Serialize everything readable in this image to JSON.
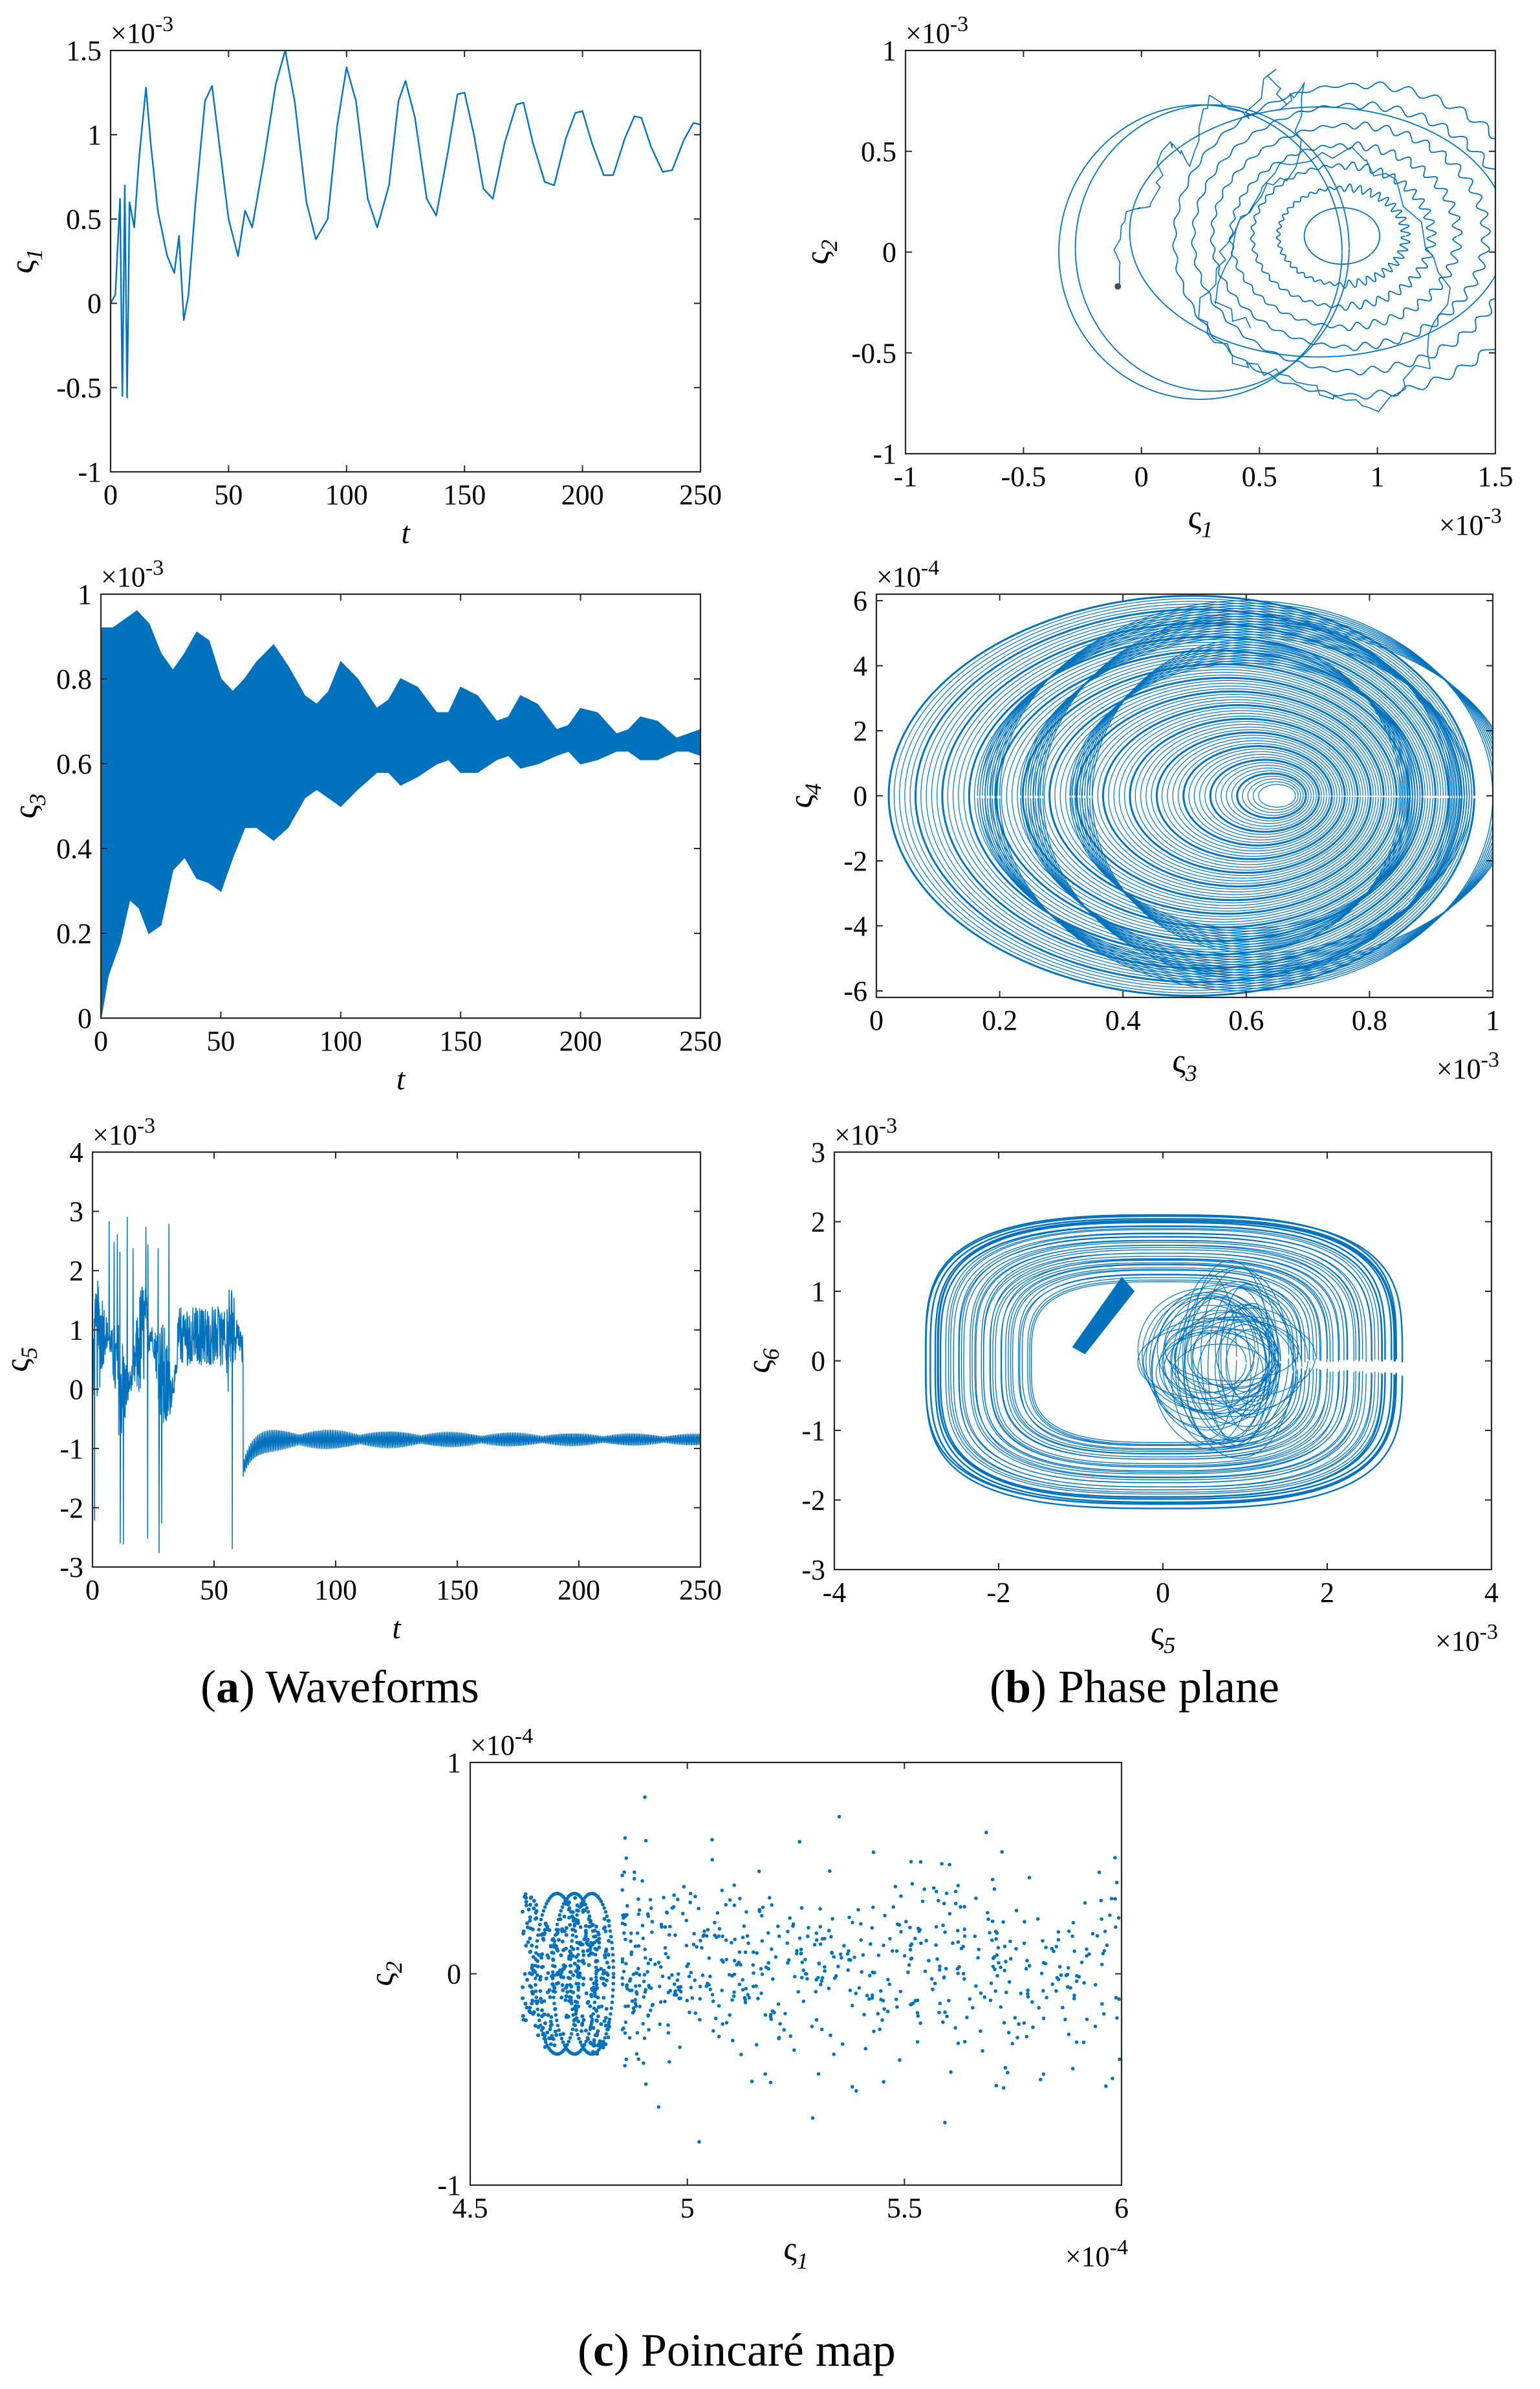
{
  "captions": {
    "a": {
      "letter": "a",
      "text": "Waveforms"
    },
    "b": {
      "letter": "b",
      "text": "Phase plane"
    },
    "c": {
      "letter": "c",
      "text": "Poincaré map"
    }
  },
  "colors": {
    "series": "#0072BD",
    "axis": "#262626",
    "start_marker": "#4d4d4d"
  },
  "chart_data": [
    {
      "id": "a1",
      "type": "line",
      "panel": "(a) Waveforms",
      "xlabel": "t",
      "ylabel_base": "ς",
      "ylabel_sub": "1",
      "xlim": [
        0,
        250
      ],
      "ylim": [
        -1,
        1.5
      ],
      "exponent": "×10-3",
      "xticks": [
        0,
        50,
        100,
        150,
        200,
        250
      ],
      "yticks": [
        -1,
        -0.5,
        0,
        0.5,
        1,
        1.5
      ],
      "points": [
        [
          0,
          0
        ],
        [
          2,
          0.05
        ],
        [
          4,
          0.62
        ],
        [
          5,
          -0.55
        ],
        [
          6,
          0.7
        ],
        [
          7,
          -0.56
        ],
        [
          8,
          0.6
        ],
        [
          10,
          0.45
        ],
        [
          12,
          0.85
        ],
        [
          15,
          1.28
        ],
        [
          17,
          0.95
        ],
        [
          20,
          0.55
        ],
        [
          24,
          0.28
        ],
        [
          27,
          0.18
        ],
        [
          29,
          0.4
        ],
        [
          31,
          -0.1
        ],
        [
          33,
          0.05
        ],
        [
          36,
          0.6
        ],
        [
          40,
          1.2
        ],
        [
          43,
          1.29
        ],
        [
          46,
          0.95
        ],
        [
          50,
          0.5
        ],
        [
          54,
          0.28
        ],
        [
          57,
          0.55
        ],
        [
          60,
          0.45
        ],
        [
          65,
          0.85
        ],
        [
          70,
          1.3
        ],
        [
          74,
          1.5
        ],
        [
          78,
          1.2
        ],
        [
          83,
          0.6
        ],
        [
          87,
          0.38
        ],
        [
          92,
          0.5
        ],
        [
          96,
          1.05
        ],
        [
          100,
          1.4
        ],
        [
          104,
          1.2
        ],
        [
          109,
          0.62
        ],
        [
          113,
          0.45
        ],
        [
          118,
          0.7
        ],
        [
          122,
          1.2
        ],
        [
          125,
          1.32
        ],
        [
          129,
          1.1
        ],
        [
          134,
          0.62
        ],
        [
          138,
          0.52
        ],
        [
          143,
          0.9
        ],
        [
          147,
          1.24
        ],
        [
          150,
          1.25
        ],
        [
          154,
          1.0
        ],
        [
          158,
          0.68
        ],
        [
          162,
          0.62
        ],
        [
          167,
          0.95
        ],
        [
          172,
          1.18
        ],
        [
          175,
          1.19
        ],
        [
          179,
          0.95
        ],
        [
          184,
          0.72
        ],
        [
          188,
          0.7
        ],
        [
          193,
          0.98
        ],
        [
          197,
          1.13
        ],
        [
          200,
          1.14
        ],
        [
          204,
          0.95
        ],
        [
          209,
          0.76
        ],
        [
          213,
          0.76
        ],
        [
          218,
          0.98
        ],
        [
          222,
          1.11
        ],
        [
          225,
          1.1
        ],
        [
          229,
          0.93
        ],
        [
          234,
          0.78
        ],
        [
          238,
          0.79
        ],
        [
          243,
          0.97
        ],
        [
          247,
          1.07
        ],
        [
          250,
          1.06
        ]
      ]
    },
    {
      "id": "b1",
      "type": "line",
      "panel": "(b) Phase plane",
      "xlabel_base": "ς",
      "xlabel_sub": "1",
      "ylabel_base": "ς",
      "ylabel_sub": "2",
      "xlim": [
        -1,
        1.5
      ],
      "ylim": [
        -1,
        1
      ],
      "x_exponent": "×10-3",
      "y_exponent": "×10-3",
      "xticks": [
        -1,
        -0.5,
        0,
        0.5,
        1,
        1.5
      ],
      "yticks": [
        -1,
        -0.5,
        0,
        0.5,
        1
      ],
      "start_point": [
        -0.1,
        -0.17
      ],
      "rings": [
        [
          0.85,
          0.08,
          0.16,
          0.14
        ],
        [
          0.85,
          0.08,
          0.27,
          0.24
        ],
        [
          0.85,
          0.08,
          0.38,
          0.35
        ],
        [
          0.86,
          0.08,
          0.48,
          0.45
        ],
        [
          0.88,
          0.08,
          0.58,
          0.55
        ],
        [
          0.9,
          0.07,
          0.68,
          0.66
        ],
        [
          0.92,
          0.06,
          0.78,
          0.77
        ],
        [
          0.75,
          0.1,
          0.8,
          0.62
        ],
        [
          0.3,
          0.02,
          0.58,
          0.71
        ],
        [
          0.25,
          0.0,
          0.6,
          0.73
        ]
      ]
    },
    {
      "id": "a2",
      "type": "area",
      "panel": "(a) Waveforms",
      "xlabel": "t",
      "ylabel_base": "ς",
      "ylabel_sub": "3",
      "xlim": [
        0,
        250
      ],
      "ylim": [
        0,
        1
      ],
      "exponent": "×10-3",
      "xticks": [
        0,
        50,
        100,
        150,
        200,
        250
      ],
      "yticks": [
        0,
        0.2,
        0.4,
        0.6,
        0.8,
        1
      ],
      "upper": [
        [
          0,
          0.92
        ],
        [
          5,
          0.92
        ],
        [
          10,
          0.94
        ],
        [
          15,
          0.96
        ],
        [
          20,
          0.93
        ],
        [
          25,
          0.86
        ],
        [
          30,
          0.82
        ],
        [
          35,
          0.86
        ],
        [
          40,
          0.91
        ],
        [
          45,
          0.89
        ],
        [
          50,
          0.8
        ],
        [
          55,
          0.77
        ],
        [
          60,
          0.8
        ],
        [
          65,
          0.84
        ],
        [
          72,
          0.88
        ],
        [
          78,
          0.83
        ],
        [
          85,
          0.76
        ],
        [
          90,
          0.74
        ],
        [
          95,
          0.77
        ],
        [
          100,
          0.84
        ],
        [
          107,
          0.8
        ],
        [
          115,
          0.73
        ],
        [
          120,
          0.75
        ],
        [
          125,
          0.8
        ],
        [
          132,
          0.78
        ],
        [
          140,
          0.72
        ],
        [
          145,
          0.72
        ],
        [
          150,
          0.78
        ],
        [
          157,
          0.76
        ],
        [
          165,
          0.7
        ],
        [
          170,
          0.71
        ],
        [
          175,
          0.76
        ],
        [
          182,
          0.74
        ],
        [
          190,
          0.68
        ],
        [
          195,
          0.69
        ],
        [
          200,
          0.73
        ],
        [
          207,
          0.72
        ],
        [
          215,
          0.67
        ],
        [
          220,
          0.68
        ],
        [
          225,
          0.71
        ],
        [
          232,
          0.7
        ],
        [
          240,
          0.66
        ],
        [
          245,
          0.67
        ],
        [
          250,
          0.68
        ]
      ],
      "lower": [
        [
          0,
          0.0
        ],
        [
          3,
          0.1
        ],
        [
          8,
          0.18
        ],
        [
          12,
          0.28
        ],
        [
          16,
          0.26
        ],
        [
          20,
          0.2
        ],
        [
          25,
          0.22
        ],
        [
          30,
          0.35
        ],
        [
          35,
          0.38
        ],
        [
          40,
          0.33
        ],
        [
          45,
          0.32
        ],
        [
          50,
          0.3
        ],
        [
          55,
          0.38
        ],
        [
          60,
          0.45
        ],
        [
          65,
          0.45
        ],
        [
          72,
          0.42
        ],
        [
          78,
          0.45
        ],
        [
          85,
          0.52
        ],
        [
          90,
          0.54
        ],
        [
          95,
          0.52
        ],
        [
          100,
          0.5
        ],
        [
          107,
          0.54
        ],
        [
          115,
          0.58
        ],
        [
          120,
          0.58
        ],
        [
          125,
          0.55
        ],
        [
          132,
          0.57
        ],
        [
          140,
          0.6
        ],
        [
          145,
          0.61
        ],
        [
          150,
          0.58
        ],
        [
          157,
          0.58
        ],
        [
          165,
          0.61
        ],
        [
          170,
          0.62
        ],
        [
          175,
          0.59
        ],
        [
          182,
          0.6
        ],
        [
          190,
          0.62
        ],
        [
          195,
          0.63
        ],
        [
          200,
          0.6
        ],
        [
          207,
          0.61
        ],
        [
          215,
          0.63
        ],
        [
          220,
          0.63
        ],
        [
          225,
          0.61
        ],
        [
          232,
          0.61
        ],
        [
          240,
          0.63
        ],
        [
          245,
          0.63
        ],
        [
          250,
          0.62
        ]
      ]
    },
    {
      "id": "b2",
      "type": "line",
      "panel": "(b) Phase plane",
      "xlabel_base": "ς",
      "xlabel_sub": "3",
      "ylabel_base": "ς",
      "ylabel_sub": "4",
      "xlim": [
        0,
        1
      ],
      "ylim": [
        -6.2,
        6.2
      ],
      "x_exponent": "×10-3",
      "y_exponent": "×10-4",
      "xticks": [
        0,
        0.2,
        0.4,
        0.6,
        0.8,
        1
      ],
      "yticks": [
        -6,
        -4,
        -2,
        0,
        2,
        4,
        6
      ],
      "hole": [
        0.645,
        0
      ]
    },
    {
      "id": "a3",
      "type": "line",
      "panel": "(a) Waveforms",
      "xlabel": "t",
      "ylabel_base": "ς",
      "ylabel_sub": "5",
      "xlim": [
        0,
        250
      ],
      "ylim": [
        -3,
        4
      ],
      "exponent": "×10-3",
      "xticks": [
        0,
        50,
        100,
        150,
        200,
        250
      ],
      "yticks": [
        -3,
        -2,
        -1,
        0,
        1,
        2,
        3,
        4
      ],
      "transient_end": 62,
      "settle_value": -0.85,
      "settle_amp": 0.2
    },
    {
      "id": "b3",
      "type": "line",
      "panel": "(b) Phase plane",
      "xlabel_base": "ς",
      "xlabel_sub": "5",
      "ylabel_base": "ς",
      "ylabel_sub": "6",
      "xlim": [
        -4,
        4
      ],
      "ylim": [
        -3,
        3
      ],
      "x_exponent": "×10-3",
      "y_exponent": "×10-3",
      "xticks": [
        -4,
        -2,
        0,
        2,
        4
      ],
      "yticks": [
        -3,
        -2,
        -1,
        0,
        1,
        2,
        3
      ]
    },
    {
      "id": "c1",
      "type": "scatter",
      "panel": "(c) Poincaré map",
      "xlabel_base": "ς",
      "xlabel_sub": "1",
      "ylabel_base": "ς",
      "ylabel_sub": "2",
      "xlim": [
        4.5,
        6
      ],
      "ylim": [
        -1,
        1
      ],
      "x_exponent": "×10-4",
      "y_exponent": "×10-4",
      "xticks": [
        4.5,
        5,
        5.5,
        6
      ],
      "yticks": [
        -1,
        0,
        1
      ],
      "cluster_x": [
        4.62,
        4.82
      ],
      "cloud_x": [
        4.85,
        6.0
      ],
      "cloud_center": [
        5.2,
        0.1
      ]
    }
  ]
}
